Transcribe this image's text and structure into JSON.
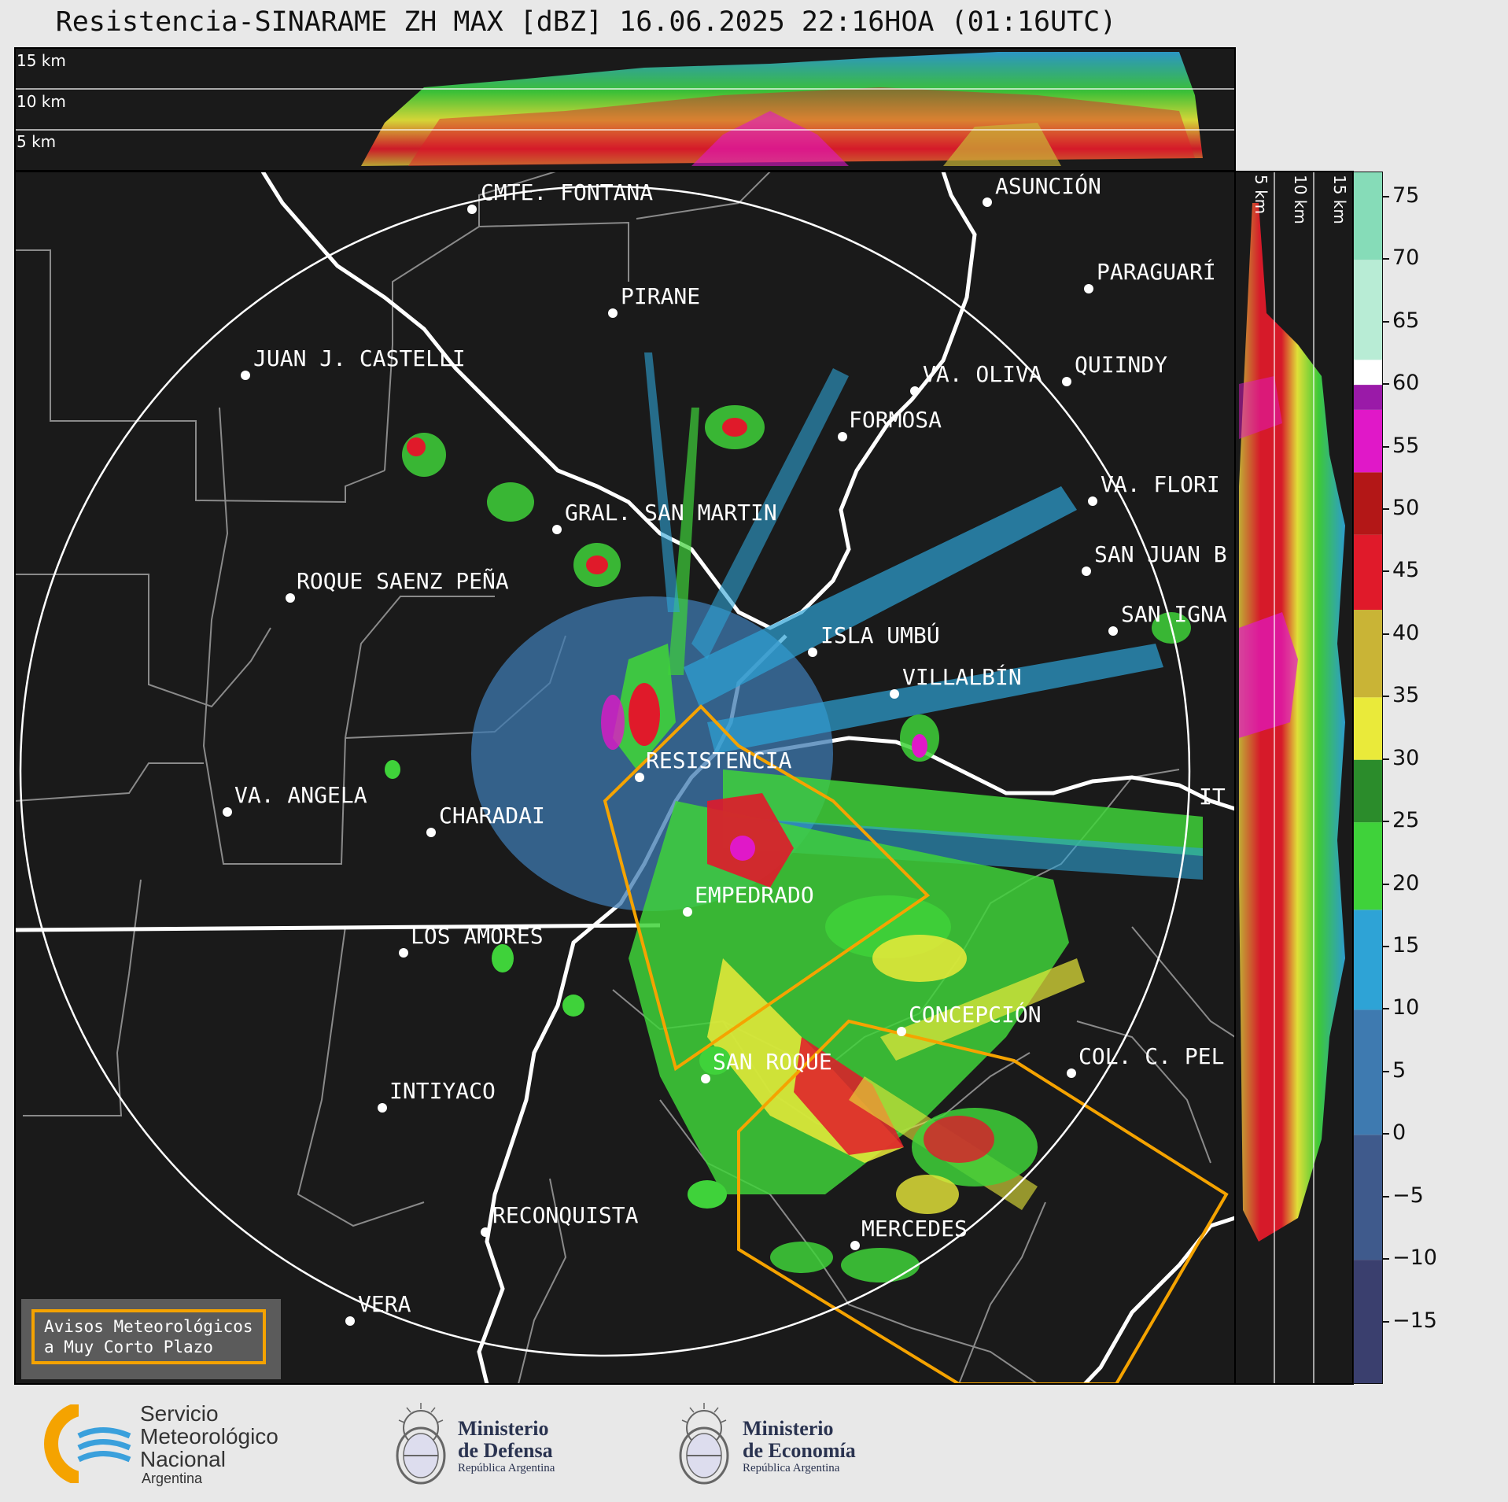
{
  "title": "Resistencia-SINARAME ZH MAX [dBZ] 16.06.2025 22:16HOA (01:16UTC)",
  "top_panel": {
    "altitudes": [
      "15 km",
      "10 km",
      "5 km"
    ]
  },
  "side_panel": {
    "altitudes": [
      "5 km",
      "10 km",
      "15 km"
    ]
  },
  "colorbar": {
    "ticks": [
      "75",
      "70",
      "65",
      "60",
      "55",
      "50",
      "45",
      "40",
      "35",
      "30",
      "25",
      "20",
      "15",
      "10",
      "5",
      "0",
      "−5",
      "−10",
      "−15"
    ],
    "tick_values": [
      75,
      70,
      65,
      60,
      55,
      50,
      45,
      40,
      35,
      30,
      25,
      20,
      15,
      10,
      5,
      0,
      -5,
      -10,
      -15
    ],
    "range": [
      -20,
      77
    ],
    "stops": [
      {
        "from": -20,
        "to": -10,
        "color": "#3a3f6e"
      },
      {
        "from": -10,
        "to": 0,
        "color": "#3f5a8c"
      },
      {
        "from": 0,
        "to": 10,
        "color": "#3e7ab0"
      },
      {
        "from": 10,
        "to": 18,
        "color": "#2ea3d6"
      },
      {
        "from": 18,
        "to": 25,
        "color": "#3fd23a"
      },
      {
        "from": 25,
        "to": 30,
        "color": "#2b8c2b"
      },
      {
        "from": 30,
        "to": 35,
        "color": "#eaea3a"
      },
      {
        "from": 35,
        "to": 42,
        "color": "#c9b436"
      },
      {
        "from": 42,
        "to": 48,
        "color": "#e01a2a"
      },
      {
        "from": 48,
        "to": 53,
        "color": "#b31717"
      },
      {
        "from": 53,
        "to": 58,
        "color": "#e018c8"
      },
      {
        "from": 58,
        "to": 60,
        "color": "#9a1aa8"
      },
      {
        "from": 60,
        "to": 62,
        "color": "#ffffff"
      },
      {
        "from": 62,
        "to": 70,
        "color": "#b8ecd5"
      },
      {
        "from": 70,
        "to": 77,
        "color": "#86dcb8"
      }
    ]
  },
  "cities": [
    {
      "name": "CMTE. FONTANA"
    },
    {
      "name": "ASUNCIÓN"
    },
    {
      "name": "PARAGUARÍ"
    },
    {
      "name": "PIRANE"
    },
    {
      "name": "JUAN J. CASTELLI"
    },
    {
      "name": "VA. OLIVA"
    },
    {
      "name": "QUIINDY"
    },
    {
      "name": "FORMOSA"
    },
    {
      "name": "VA. FLORI"
    },
    {
      "name": "GRAL. SAN MARTIN"
    },
    {
      "name": "SAN JUAN B"
    },
    {
      "name": "ROQUE SAENZ PEÑA"
    },
    {
      "name": "SAN IGNA"
    },
    {
      "name": "ISLA UMBÚ"
    },
    {
      "name": "VILLALBÍN"
    },
    {
      "name": "RESISTENCIA"
    },
    {
      "name": "VA. ANGELA"
    },
    {
      "name": "CHARADAI"
    },
    {
      "name": "IT"
    },
    {
      "name": "EMPEDRADO"
    },
    {
      "name": "LOS AMORES"
    },
    {
      "name": "CONCEPCIÓN"
    },
    {
      "name": "COL. C. PEL"
    },
    {
      "name": "SAN ROQUE"
    },
    {
      "name": "INTIYACO"
    },
    {
      "name": "RECONQUISTA"
    },
    {
      "name": "MERCEDES"
    },
    {
      "name": "VERA"
    }
  ],
  "legend": {
    "line1": "Avisos Meteorológicos",
    "line2": "a Muy Corto Plazo",
    "color": "#f5a300"
  },
  "logos": {
    "smn": {
      "line1": "Servicio",
      "line2": "Meteorológico",
      "line3": "Nacional",
      "line4": "Argentina"
    },
    "defensa": {
      "line1": "Ministerio",
      "line2": "de Defensa",
      "line3": "República Argentina"
    },
    "economia": {
      "line1": "Ministerio",
      "line2": "de Economía",
      "line3": "República Argentina"
    }
  }
}
